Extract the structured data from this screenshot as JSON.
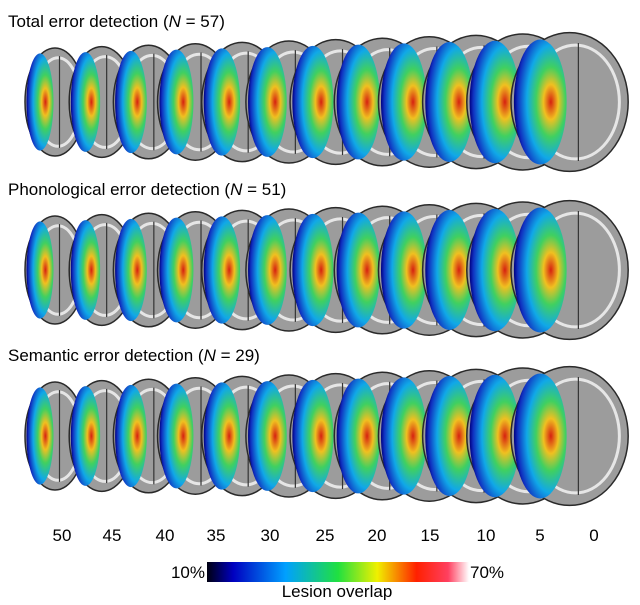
{
  "panels": [
    {
      "title_parts": [
        "Total error detection (",
        "N",
        " = 57)"
      ]
    },
    {
      "title_parts": [
        "Phonological error detection (",
        "N",
        " = 51)"
      ]
    },
    {
      "title_parts": [
        "Semantic error detection (",
        "N",
        " = 29)"
      ]
    }
  ],
  "slice_labels": [
    50,
    45,
    40,
    35,
    30,
    25,
    20,
    15,
    10,
    5,
    0
  ],
  "colorbar": {
    "min_label": "10%",
    "max_label": "70%",
    "title": "Lesion overlap"
  }
}
